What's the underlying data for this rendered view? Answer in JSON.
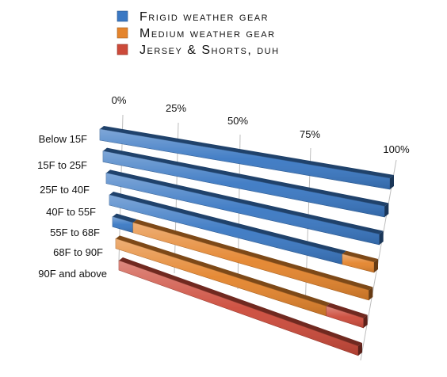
{
  "chart_data": {
    "type": "bar",
    "orientation": "horizontal",
    "stacked": "percent",
    "style": "3d-perspective",
    "categories": [
      "Below 15F",
      "15F to 25F",
      "25F to 40F",
      "40F to 55F",
      "55F to 68F",
      "68F to 90F",
      "90F and above"
    ],
    "series": [
      {
        "name": "Frigid weather gear",
        "color": "#3a78c3",
        "values": [
          100,
          100,
          100,
          88,
          8,
          0,
          0
        ]
      },
      {
        "name": "Medium weather gear",
        "color": "#e4842c",
        "values": [
          0,
          0,
          0,
          12,
          92,
          85,
          0
        ]
      },
      {
        "name": "Jersey & Shorts, duh",
        "color": "#cc4a3a",
        "values": [
          0,
          0,
          0,
          0,
          0,
          15,
          100
        ]
      }
    ],
    "x_ticks": [
      "0%",
      "25%",
      "50%",
      "75%",
      "100%"
    ],
    "xlim": [
      0,
      100
    ],
    "legend_position": "top"
  }
}
